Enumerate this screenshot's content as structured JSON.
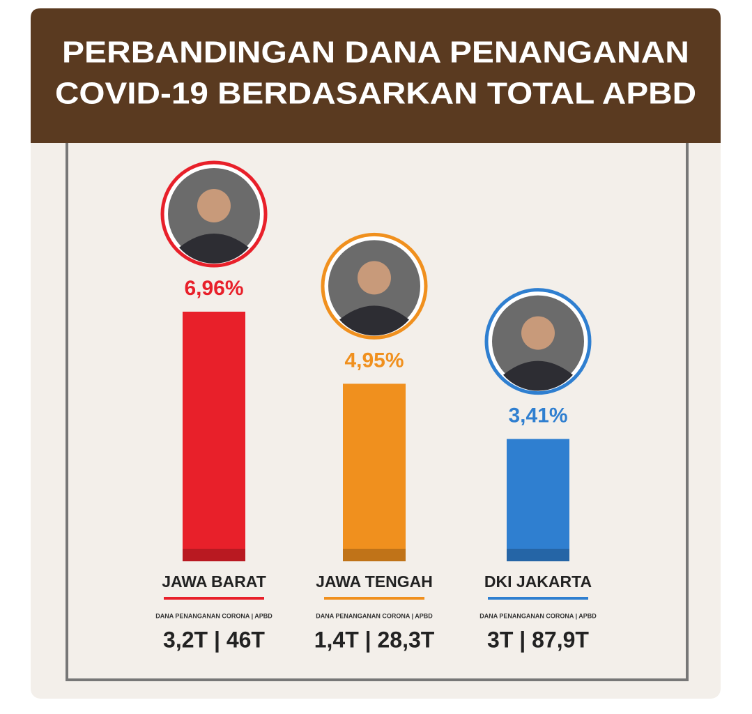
{
  "chart_data": {
    "type": "bar",
    "title": [
      "PERBANDINGAN DANA PENANGANAN",
      "COVID-19 BERDASARKAN TOTAL APBD"
    ],
    "categories": [
      "JAWA BARAT",
      "JAWA TENGAH",
      "DKI JAKARTA"
    ],
    "values": [
      6.96,
      4.95,
      3.41
    ],
    "value_labels": [
      "6,96%",
      "4,95%",
      "3,41%"
    ],
    "colors": [
      "#e8202a",
      "#f0901e",
      "#2f7fd0"
    ],
    "fund_labels": [
      "DANA PENANGANAN CORONA | APBD",
      "DANA PENANGANAN CORONA | APBD",
      "DANA PENANGANAN CORONA | APBD"
    ],
    "fund_values": [
      "3,2T | 46T",
      "1,4T | 28,3T",
      "3T | 87,9T"
    ]
  }
}
